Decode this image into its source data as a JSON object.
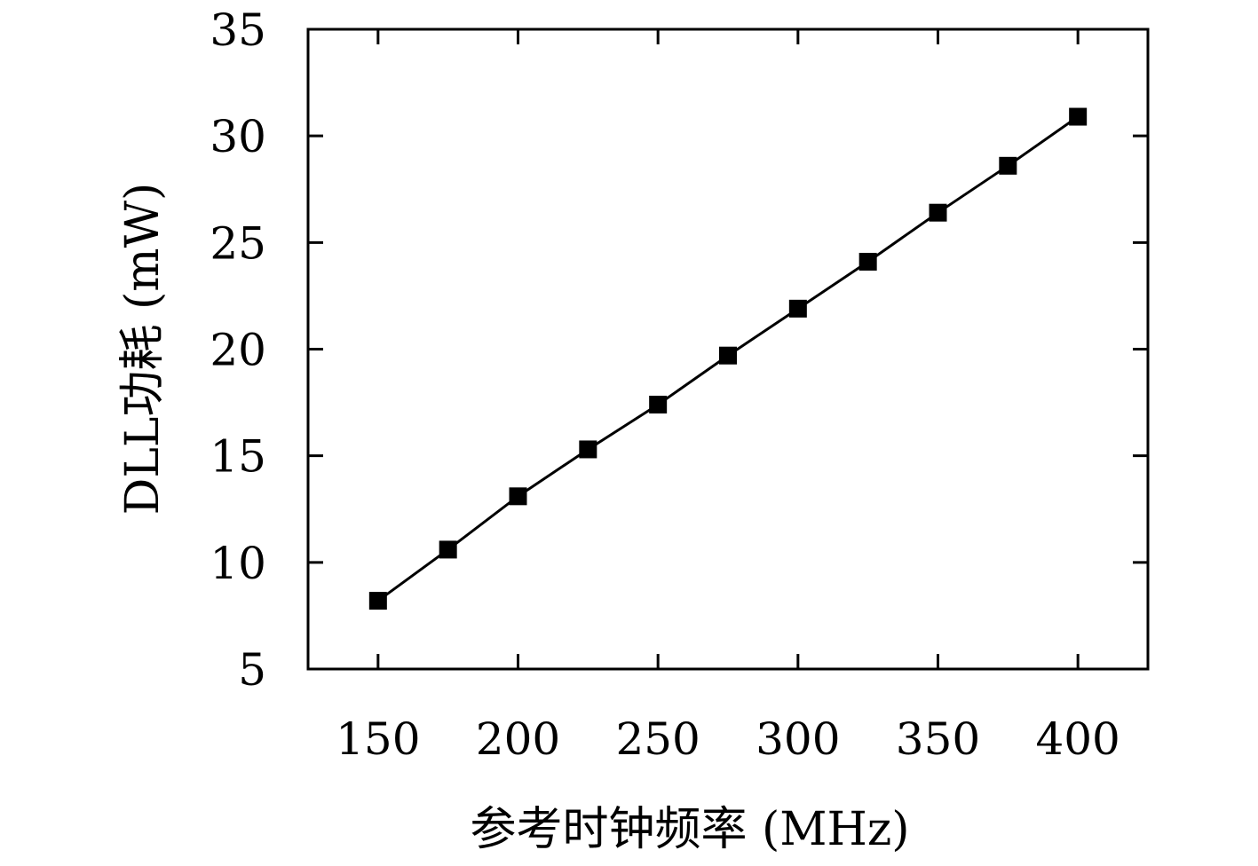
{
  "chart_data": {
    "type": "line",
    "xlabel": "参考时钟频率 (MHz)",
    "ylabel": "DLL功耗 (mW)",
    "xlim": [
      125,
      425
    ],
    "ylim": [
      5,
      35
    ],
    "x_ticks": [
      150,
      200,
      250,
      300,
      350,
      400
    ],
    "y_ticks": [
      5,
      10,
      15,
      20,
      25,
      30,
      35
    ],
    "x_minor_ticks": [
      150,
      200,
      250,
      300,
      350,
      400
    ],
    "grid": false,
    "series": [
      {
        "marker": "square",
        "color": "#000000",
        "x": [
          150,
          175,
          200,
          225,
          250,
          275,
          300,
          325,
          350,
          375,
          400
        ],
        "y": [
          8.2,
          10.6,
          13.1,
          15.3,
          17.4,
          19.7,
          21.9,
          24.1,
          26.4,
          28.6,
          30.9
        ]
      }
    ]
  }
}
